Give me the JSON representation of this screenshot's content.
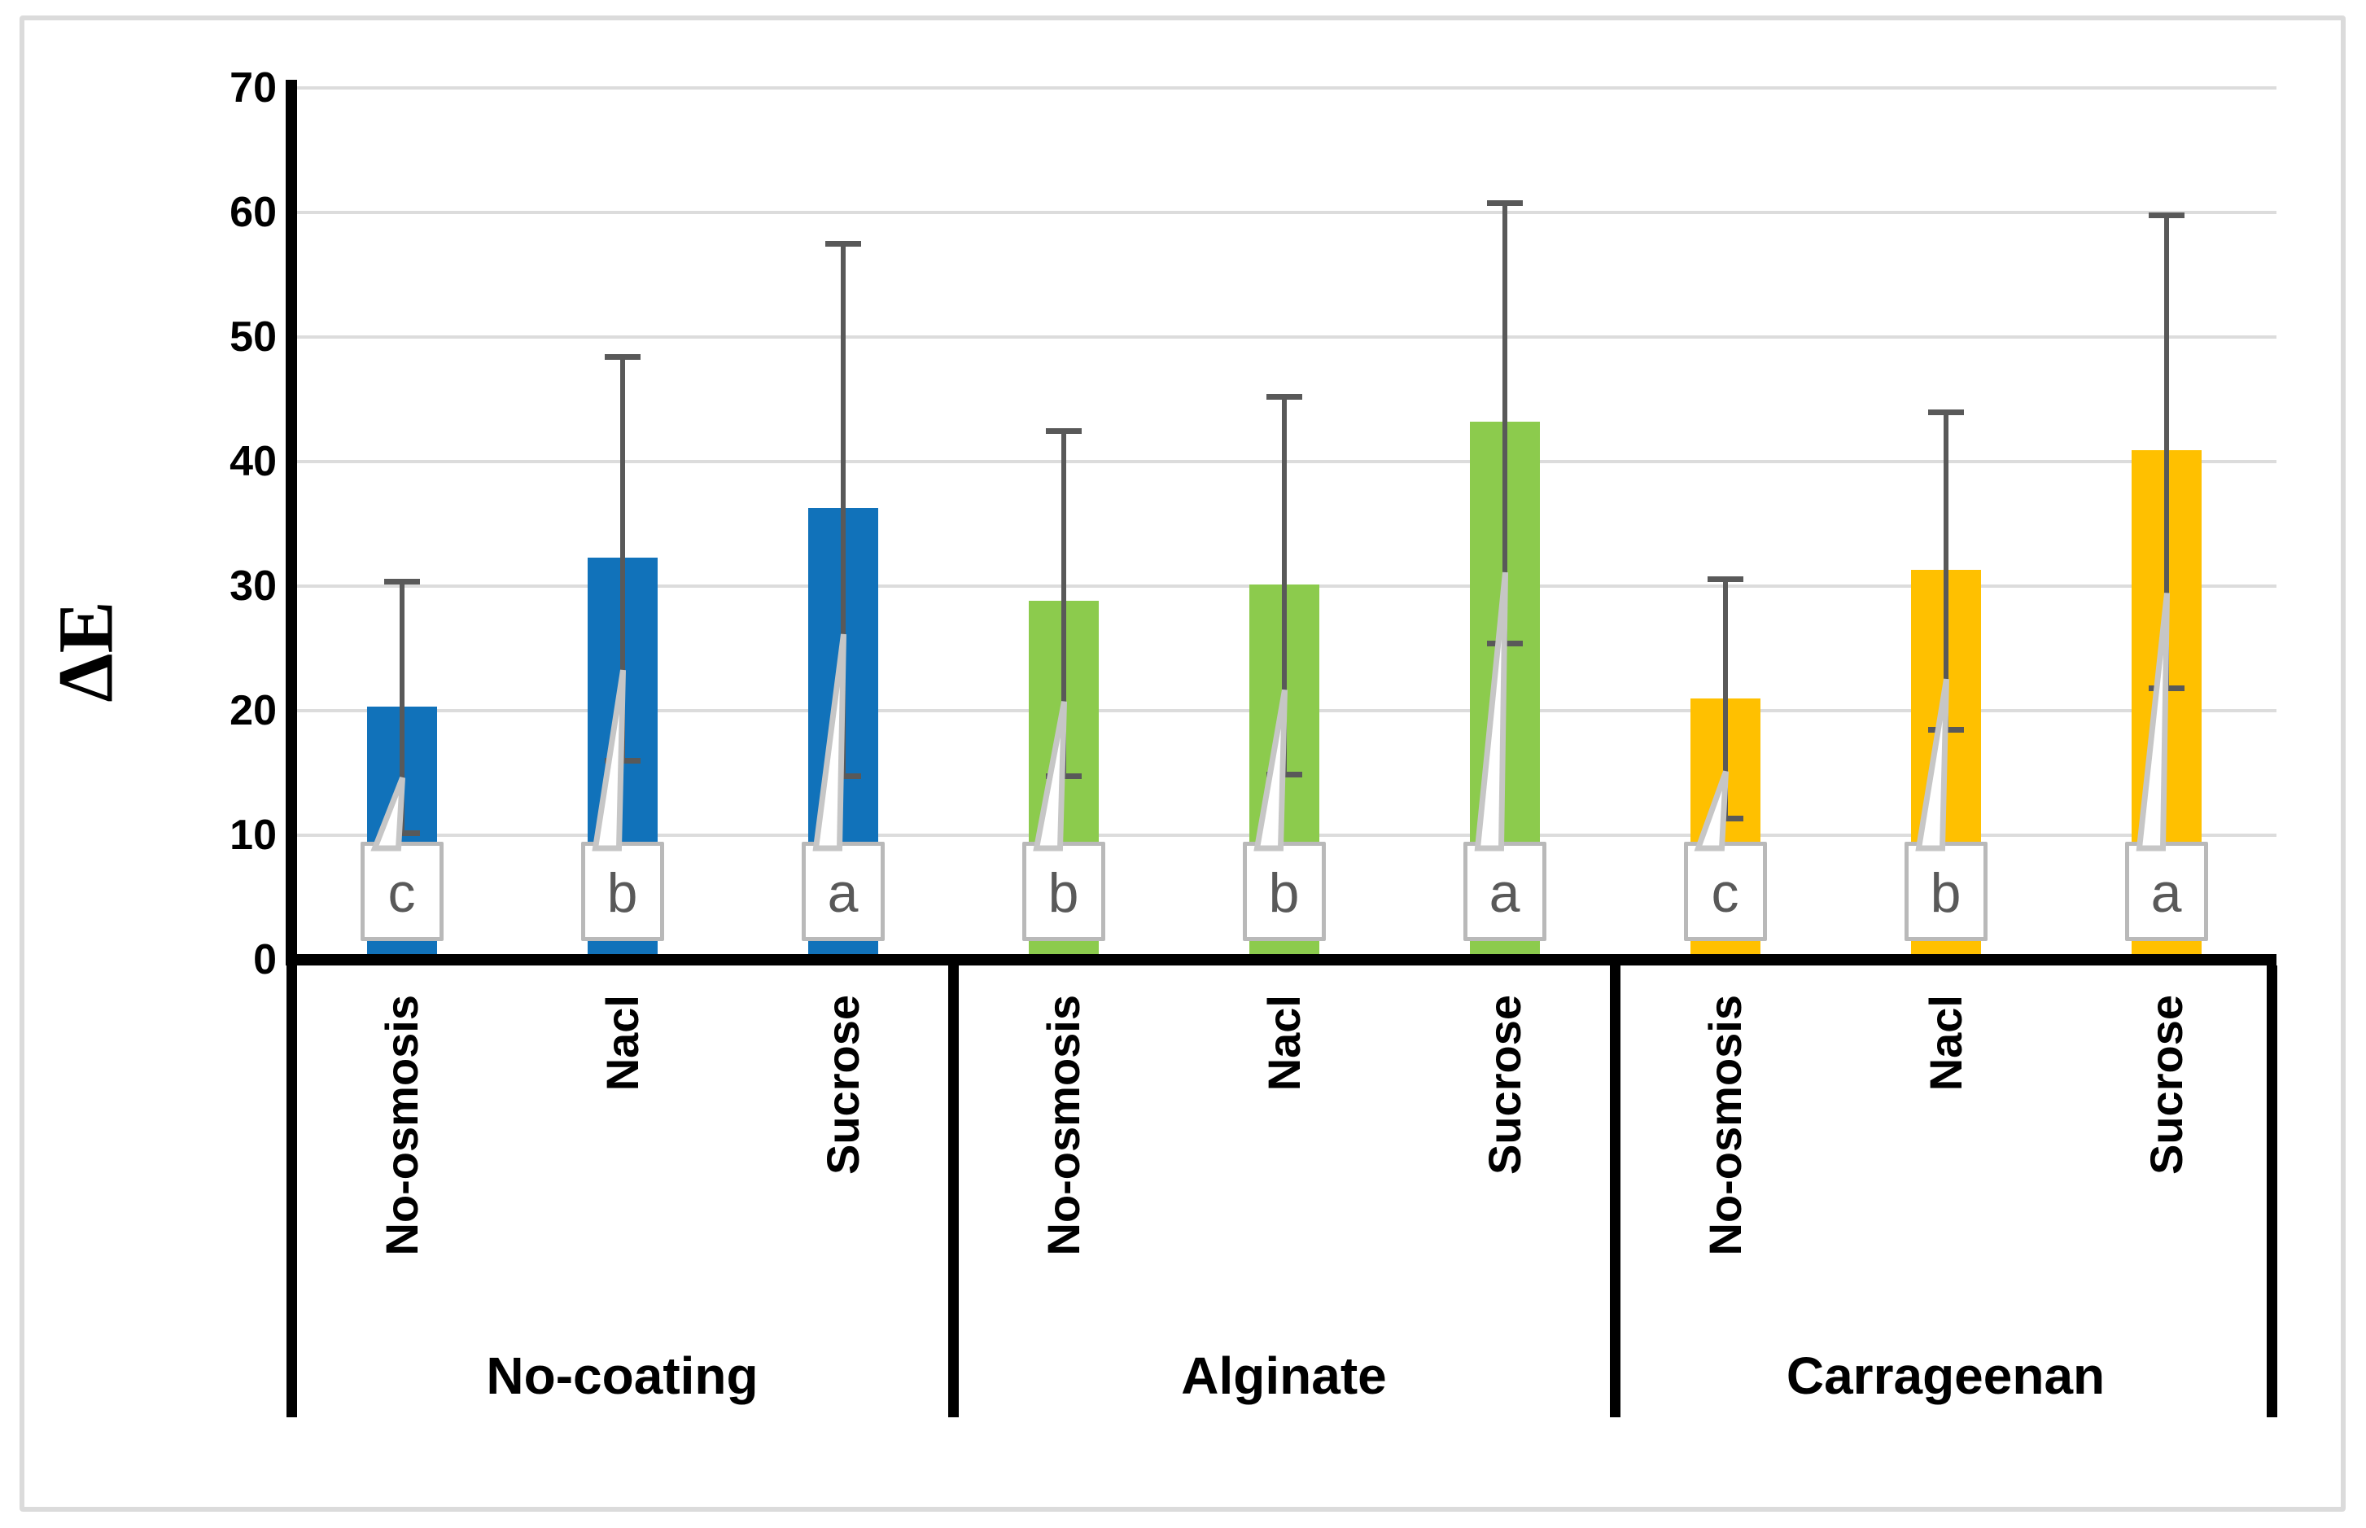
{
  "chart_data": {
    "type": "bar",
    "title": "",
    "ylabel": "ΔE",
    "xlabel": "",
    "ylim": [
      0,
      70
    ],
    "ytick_step": 10,
    "grid": "horizontal",
    "legend": "none",
    "gridline_color": "#DCDCDC",
    "error_bar_color": "#595959",
    "annotation_style": "significance letters in white callout boxes with gray leader lines",
    "categories": [
      "No-osmosis",
      "Nacl",
      "Sucrose"
    ],
    "group_labels": [
      "No-coating",
      "Alginate",
      "Carrageenan"
    ],
    "series_colors": [
      "#1172BA",
      "#8CCB4D",
      "#FFC000"
    ],
    "groups": [
      {
        "label": "No-coating",
        "color": "#1172BA",
        "bars": [
          {
            "category": "No-osmosis",
            "value": 20.3,
            "err_top": 30.4,
            "err_bottom": 10.2,
            "letter": "c"
          },
          {
            "category": "Nacl",
            "value": 32.3,
            "err_top": 48.4,
            "err_bottom": 16.0,
            "letter": "b"
          },
          {
            "category": "Sucrose",
            "value": 36.3,
            "err_top": 57.5,
            "err_bottom": 14.8,
            "letter": "a"
          }
        ]
      },
      {
        "label": "Alginate",
        "color": "#8CCB4D",
        "bars": [
          {
            "category": "No-osmosis",
            "value": 28.8,
            "err_top": 42.5,
            "err_bottom": 14.8,
            "letter": "b"
          },
          {
            "category": "Nacl",
            "value": 30.1,
            "err_top": 45.2,
            "err_bottom": 14.9,
            "letter": "b"
          },
          {
            "category": "Sucrose",
            "value": 43.2,
            "err_top": 60.8,
            "err_bottom": 25.4,
            "letter": "a"
          }
        ]
      },
      {
        "label": "Carrageenan",
        "color": "#FFC000",
        "bars": [
          {
            "category": "No-osmosis",
            "value": 21.0,
            "err_top": 30.6,
            "err_bottom": 11.4,
            "letter": "c"
          },
          {
            "category": "Nacl",
            "value": 31.3,
            "err_top": 44.0,
            "err_bottom": 18.5,
            "letter": "b"
          },
          {
            "category": "Sucrose",
            "value": 40.9,
            "err_top": 59.8,
            "err_bottom": 21.8,
            "letter": "a"
          }
        ]
      }
    ]
  }
}
